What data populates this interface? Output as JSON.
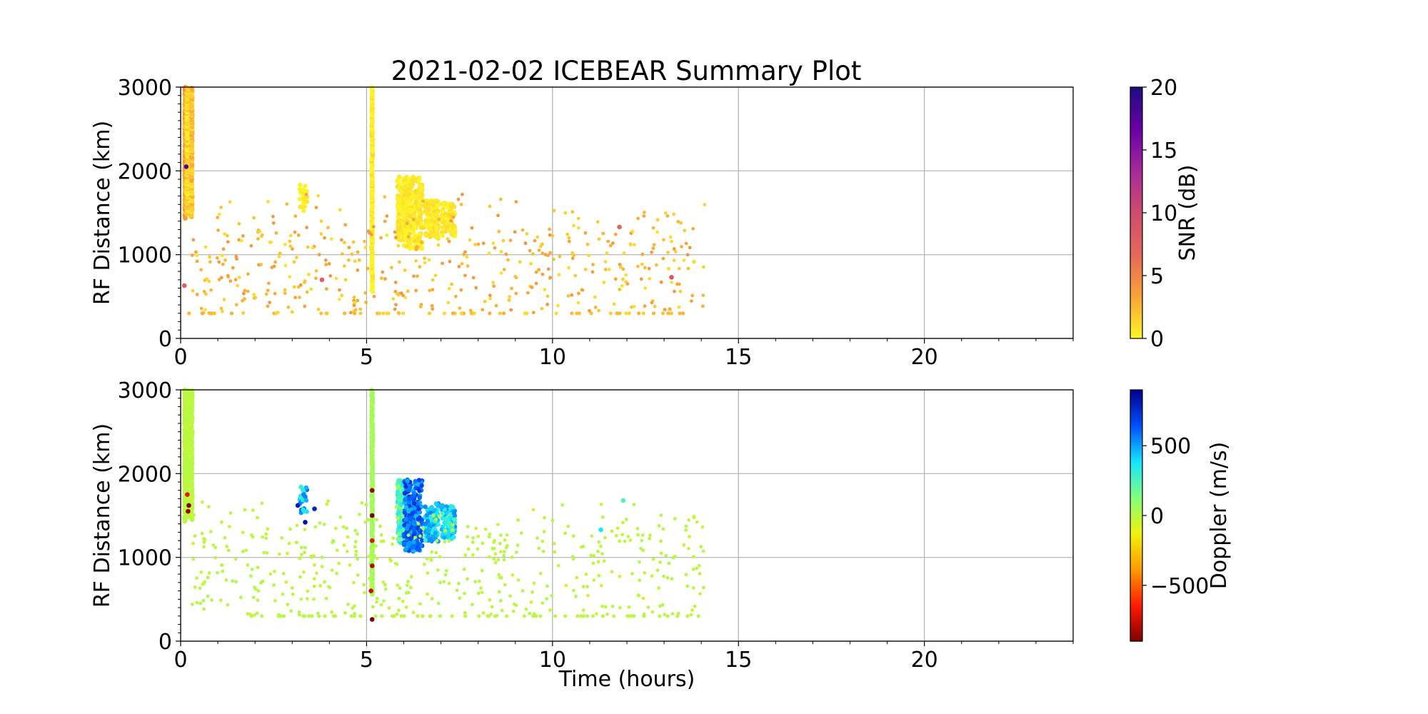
{
  "title": "2021-02-02 ICEBEAR Summary Plot",
  "colors": {
    "grid": "#b0b0b0",
    "snr_colormap": [
      "#fcf629",
      "#fba337",
      "#e6685a",
      "#cf4d6f",
      "#a62b98",
      "#6a00a8",
      "#1f0c80"
    ],
    "doppler_colormap": [
      "#800000",
      "#ff1a00",
      "#ff9a00",
      "#f0f20a",
      "#84ff7a",
      "#15e6ff",
      "#0050ff",
      "#00008f"
    ]
  },
  "chart_data": [
    {
      "id": "snr",
      "type": "scatter",
      "xlabel": "",
      "ylabel": "RF Distance (km)",
      "xlim": [
        0,
        24
      ],
      "ylim": [
        0,
        3000
      ],
      "xticks": [
        "0",
        "5",
        "10",
        "15",
        "20"
      ],
      "yticks": [
        "0",
        "1000",
        "2000",
        "3000"
      ],
      "grid": true,
      "colorbar": {
        "label": "SNR (dB)",
        "range": [
          0,
          20
        ],
        "ticks": [
          "0",
          "5",
          "10",
          "15",
          "20"
        ]
      },
      "bands": [
        {
          "x": 0.12,
          "y0": 1430,
          "y1": 3000,
          "c": 3
        },
        {
          "x": 0.18,
          "y0": 1480,
          "y1": 3000,
          "c": 1
        },
        {
          "x": 0.3,
          "y0": 1450,
          "y1": 3000,
          "c": 2
        },
        {
          "x": 5.15,
          "y0": 560,
          "y1": 3000,
          "c": 0
        }
      ],
      "clusters": [
        {
          "x": 5.95,
          "y": 1550,
          "wx": 0.12,
          "hy": 380,
          "n": 140,
          "c": 0.4
        },
        {
          "x": 6.25,
          "y": 1500,
          "wx": 0.25,
          "hy": 430,
          "n": 260,
          "c": 0.4
        },
        {
          "x": 6.75,
          "y": 1420,
          "wx": 0.18,
          "hy": 230,
          "n": 130,
          "c": 0.4
        },
        {
          "x": 7.2,
          "y": 1420,
          "wx": 0.18,
          "hy": 200,
          "n": 100,
          "c": 0.4
        },
        {
          "x": 3.3,
          "y": 1680,
          "wx": 0.1,
          "hy": 160,
          "n": 30,
          "c": 0.2
        }
      ],
      "sparse": {
        "x0": 0.3,
        "x1": 14.1,
        "y0": 300,
        "y1": 1800,
        "n": 460,
        "c": 0.7
      },
      "baseline": {
        "x0": 0.1,
        "x1": 14.0,
        "y": 300,
        "n": 60,
        "c": 1
      },
      "highlight_points": [
        [
          0.15,
          2050,
          18
        ],
        [
          0.1,
          630,
          8
        ],
        [
          13.2,
          730,
          9
        ],
        [
          3.8,
          700,
          8
        ],
        [
          11.8,
          1330,
          7
        ]
      ]
    },
    {
      "id": "doppler",
      "type": "scatter",
      "xlabel": "Time (hours)",
      "ylabel": "RF Distance (km)",
      "xlim": [
        0,
        24
      ],
      "ylim": [
        0,
        3000
      ],
      "xticks": [
        "0",
        "5",
        "10",
        "15",
        "20"
      ],
      "yticks": [
        "0",
        "1000",
        "2000",
        "3000"
      ],
      "grid": true,
      "colorbar": {
        "label": "Doppler (m/s)",
        "range": [
          -900,
          900
        ],
        "ticks": [
          "−500",
          "0",
          "500"
        ],
        "tick_values": [
          -500,
          0,
          500
        ]
      },
      "bands": [
        {
          "x": 0.12,
          "y0": 1430,
          "y1": 3000,
          "c": 0
        },
        {
          "x": 0.18,
          "y0": 1480,
          "y1": 3000,
          "c": 0
        },
        {
          "x": 0.3,
          "y0": 1450,
          "y1": 3000,
          "c": 0
        },
        {
          "x": 5.15,
          "y0": 560,
          "y1": 3000,
          "c": 50
        }
      ],
      "clusters": [
        {
          "x": 5.95,
          "y": 1550,
          "wx": 0.12,
          "hy": 380,
          "n": 140,
          "c": 250
        },
        {
          "x": 6.25,
          "y": 1500,
          "wx": 0.25,
          "hy": 430,
          "n": 260,
          "c": 600
        },
        {
          "x": 6.75,
          "y": 1420,
          "wx": 0.18,
          "hy": 230,
          "n": 130,
          "c": 420
        },
        {
          "x": 7.2,
          "y": 1420,
          "wx": 0.18,
          "hy": 200,
          "n": 100,
          "c": 400
        },
        {
          "x": 3.3,
          "y": 1680,
          "wx": 0.1,
          "hy": 160,
          "n": 30,
          "c": 450
        }
      ],
      "sparse": {
        "x0": 0.3,
        "x1": 14.1,
        "y0": 300,
        "y1": 1800,
        "n": 460,
        "c": 0
      },
      "baseline": {
        "x0": 0.1,
        "x1": 14.0,
        "y": 300,
        "n": 60,
        "c": 0
      },
      "highlight_points": [
        [
          0.2,
          1550,
          -850
        ],
        [
          0.18,
          1750,
          -700
        ],
        [
          0.22,
          1620,
          -900
        ],
        [
          5.15,
          1800,
          -850
        ],
        [
          5.15,
          900,
          -800
        ],
        [
          5.15,
          1200,
          -700
        ],
        [
          5.15,
          1500,
          -900
        ],
        [
          5.12,
          600,
          -750
        ],
        [
          5.15,
          260,
          -900
        ],
        [
          3.15,
          1620,
          800
        ],
        [
          3.35,
          1420,
          850
        ],
        [
          3.6,
          1580,
          780
        ],
        [
          11.3,
          1330,
          380
        ],
        [
          11.9,
          1680,
          250
        ]
      ]
    }
  ]
}
